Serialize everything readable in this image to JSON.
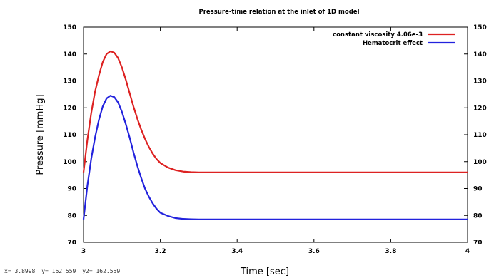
{
  "chart_data": {
    "type": "line",
    "title": "Pressure-time relation at the inlet of 1D model",
    "xlabel": "Time [sec]",
    "ylabel": "Pressure [mmHg]",
    "xlim": [
      3,
      4
    ],
    "ylim": [
      70,
      150
    ],
    "x_ticks": [
      "3",
      "3.2",
      "3.4",
      "3.6",
      "3.8",
      "4"
    ],
    "x_tick_values": [
      3,
      3.2,
      3.4,
      3.6,
      3.8,
      4
    ],
    "y_ticks": [
      "70",
      "80",
      "90",
      "100",
      "110",
      "120",
      "130",
      "140",
      "150"
    ],
    "y_tick_values": [
      70,
      80,
      90,
      100,
      110,
      120,
      130,
      140,
      150
    ],
    "right_y_ticks": [
      "70",
      "80",
      "90",
      "100",
      "110",
      "120",
      "130",
      "140",
      "150"
    ],
    "grid": false,
    "legend_position": "top-right",
    "series": [
      {
        "name": "constant viscosity 4.06e-3",
        "color": "#dd2222",
        "x": [
          3.0,
          3.01,
          3.02,
          3.03,
          3.04,
          3.05,
          3.06,
          3.07,
          3.08,
          3.09,
          3.1,
          3.11,
          3.12,
          3.13,
          3.14,
          3.15,
          3.16,
          3.17,
          3.18,
          3.19,
          3.2,
          3.22,
          3.24,
          3.26,
          3.28,
          3.3,
          3.33,
          3.4,
          3.5,
          3.6,
          3.7,
          3.8,
          3.9,
          4.0
        ],
        "y": [
          96,
          108,
          118,
          126,
          132,
          137,
          140,
          141,
          140.5,
          138.5,
          135,
          130.5,
          125.5,
          120.5,
          116,
          112,
          108.5,
          105.5,
          103,
          101,
          99.5,
          97.8,
          96.8,
          96.3,
          96.1,
          96,
          96,
          96,
          96,
          96,
          96,
          96,
          96,
          96
        ]
      },
      {
        "name": "Hematocrit effect",
        "color": "#2222dd",
        "x": [
          3.0,
          3.01,
          3.02,
          3.03,
          3.04,
          3.05,
          3.06,
          3.07,
          3.08,
          3.09,
          3.1,
          3.11,
          3.12,
          3.13,
          3.14,
          3.15,
          3.16,
          3.17,
          3.18,
          3.19,
          3.2,
          3.22,
          3.24,
          3.26,
          3.28,
          3.3,
          3.33,
          3.4,
          3.5,
          3.6,
          3.7,
          3.8,
          3.9,
          4.0
        ],
        "y": [
          78.5,
          91,
          101,
          109,
          115.5,
          120.5,
          123.5,
          124.5,
          124,
          122,
          118.5,
          114,
          109,
          103.5,
          98.5,
          94,
          90,
          87,
          84.5,
          82.5,
          81,
          79.8,
          79,
          78.7,
          78.6,
          78.5,
          78.5,
          78.5,
          78.5,
          78.5,
          78.5,
          78.5,
          78.5,
          78.5
        ]
      }
    ]
  },
  "status_bar": {
    "x": "x= 3.8998",
    "y": "y= 162.559",
    "y2": "y2= 162.559"
  }
}
